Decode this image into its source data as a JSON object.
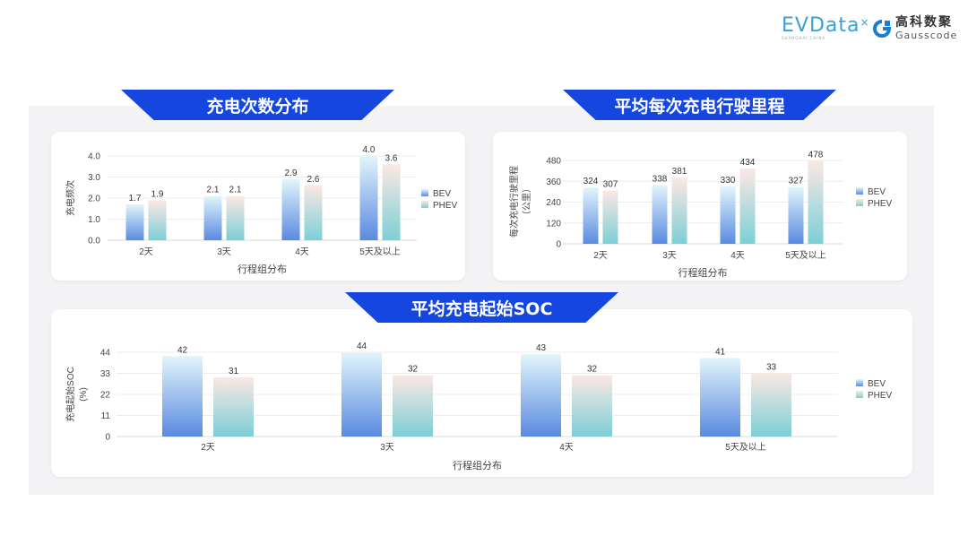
{
  "logos": {
    "evdata": "EVData",
    "evdata_sub": "SHANGHAI CHINA",
    "gausscode_cn": "高科数聚",
    "gausscode_en": "Gausscode"
  },
  "colors": {
    "banner": "#1546e0",
    "bev_top": "#e2f5fb",
    "bev_bottom": "#5a8ae0",
    "phev_top": "#fbe8e4",
    "phev_bottom": "#7ccfd6"
  },
  "chart_data": [
    {
      "type": "bar",
      "title": "充电次数分布",
      "categories": [
        "2天",
        "3天",
        "4天",
        "5天及以上"
      ],
      "series": [
        {
          "name": "BEV",
          "values": [
            1.7,
            2.1,
            2.9,
            4.0
          ]
        },
        {
          "name": "PHEV",
          "values": [
            1.9,
            2.1,
            2.6,
            3.6
          ]
        }
      ],
      "xlabel": "行程组分布",
      "ylabel": "充电频次",
      "ylim": [
        0,
        4.0
      ],
      "yticks": [
        "0.0",
        "1.0",
        "2.0",
        "3.0",
        "4.0"
      ],
      "value_labels": [
        [
          "1.7",
          "2.1",
          "2.9",
          "4.0"
        ],
        [
          "1.9",
          "2.1",
          "2.6",
          "3.6"
        ]
      ],
      "grid": true,
      "legend": "right"
    },
    {
      "type": "bar",
      "title": "平均每次充电行驶里程",
      "categories": [
        "2天",
        "3天",
        "4天",
        "5天及以上"
      ],
      "series": [
        {
          "name": "BEV",
          "values": [
            324,
            338,
            330,
            327
          ]
        },
        {
          "name": "PHEV",
          "values": [
            307,
            381,
            434,
            478
          ]
        }
      ],
      "xlabel": "行程组分布",
      "ylabel": "每次充电行驶里程",
      "ylabel2": "（公里）",
      "ylim": [
        0,
        480
      ],
      "yticks": [
        "0",
        "120",
        "240",
        "360",
        "480"
      ],
      "value_labels": [
        [
          "324",
          "338",
          "330",
          "327"
        ],
        [
          "307",
          "381",
          "434",
          "478"
        ]
      ],
      "grid": true,
      "legend": "right"
    },
    {
      "type": "bar",
      "title": "平均充电起始SOC",
      "categories": [
        "2天",
        "3天",
        "4天",
        "5天及以上"
      ],
      "series": [
        {
          "name": "BEV",
          "values": [
            42,
            44,
            43,
            41
          ]
        },
        {
          "name": "PHEV",
          "values": [
            31,
            32,
            32,
            33
          ]
        }
      ],
      "xlabel": "行程组分布",
      "ylabel": "充电起始SOC",
      "ylabel2": "(%)",
      "ylim": [
        0,
        44
      ],
      "yticks": [
        "0",
        "11",
        "22",
        "33",
        "44"
      ],
      "value_labels": [
        [
          "42",
          "44",
          "43",
          "41"
        ],
        [
          "31",
          "32",
          "32",
          "33"
        ]
      ],
      "grid": true,
      "legend": "right"
    }
  ]
}
